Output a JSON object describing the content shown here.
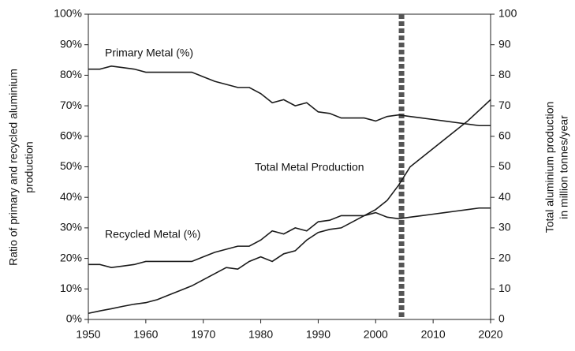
{
  "chart_data": {
    "type": "line",
    "x": [
      1950,
      1952,
      1954,
      1956,
      1958,
      1960,
      1962,
      1964,
      1966,
      1968,
      1970,
      1972,
      1974,
      1976,
      1978,
      1980,
      1982,
      1984,
      1986,
      1988,
      1990,
      1992,
      1994,
      1996,
      1998,
      2000,
      2002,
      2004,
      2006,
      2008,
      2010,
      2012,
      2014,
      2016,
      2018,
      2020
    ],
    "series": [
      {
        "name": "Primary Metal (%)",
        "color": "#1a1a1a",
        "values": [
          82,
          82,
          83,
          82.5,
          82,
          81,
          81,
          81,
          81,
          81,
          79.5,
          78,
          77,
          76,
          76,
          74,
          71,
          72,
          70,
          71,
          68,
          67.5,
          66,
          66,
          66,
          65,
          66.5,
          67,
          66.5,
          66,
          65.5,
          65,
          64.5,
          64,
          63.5,
          63.5
        ]
      },
      {
        "name": "Recycled Metal (%)",
        "color": "#1a1a1a",
        "values": [
          18,
          18,
          17,
          17.5,
          18,
          19,
          19,
          19,
          19,
          19,
          20.5,
          22,
          23,
          24,
          24,
          26,
          29,
          28,
          30,
          29,
          32,
          32.5,
          34,
          34,
          34,
          35,
          33.5,
          33,
          33.5,
          34,
          34.5,
          35,
          35.5,
          36,
          36.5,
          36.5
        ]
      },
      {
        "name": "Total Metal Production",
        "color": "#1a1a1a",
        "axis": "y2",
        "values": [
          2,
          2.8,
          3.5,
          4.3,
          5,
          5.5,
          6.5,
          8,
          9.5,
          11,
          13,
          15,
          17,
          16.5,
          19,
          20.5,
          19,
          21.5,
          22.5,
          26,
          28.5,
          29.5,
          30,
          32,
          34,
          36,
          39,
          44,
          50,
          53,
          56,
          59,
          62,
          65,
          68.5,
          72
        ]
      }
    ],
    "xlim": [
      1950,
      2020
    ],
    "xticks": [
      1950,
      1960,
      1970,
      1980,
      1990,
      2000,
      2010,
      2020
    ],
    "ylim": [
      0,
      100
    ],
    "yticks": [
      {
        "value": 0,
        "label": "0%"
      },
      {
        "value": 10,
        "label": "10%"
      },
      {
        "value": 20,
        "label": "20%"
      },
      {
        "value": 30,
        "label": "30%"
      },
      {
        "value": 40,
        "label": "40%"
      },
      {
        "value": 50,
        "label": "50%"
      },
      {
        "value": 60,
        "label": "60%"
      },
      {
        "value": 70,
        "label": "70%"
      },
      {
        "value": 80,
        "label": "80%"
      },
      {
        "value": 90,
        "label": "90%"
      },
      {
        "value": 100,
        "label": "100%"
      }
    ],
    "y2lim": [
      0,
      100
    ],
    "y2ticks": [
      0,
      10,
      20,
      30,
      40,
      50,
      60,
      70,
      80,
      90,
      100
    ],
    "ylabel": [
      "Ratio of primary and recycled aluminium",
      "production"
    ],
    "y2label": [
      "Total aluminium production",
      "in million tonnes/year"
    ],
    "reference_x": 2004.5,
    "reference_color": "#555555"
  }
}
